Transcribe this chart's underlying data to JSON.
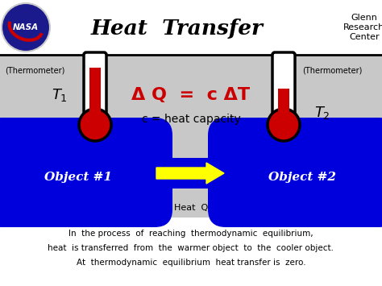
{
  "title": "Heat  Transfer",
  "glenn": "Glenn\nResearch\nCenter",
  "bg_color": "#c8c8c8",
  "header_bg": "#ffffff",
  "blue_color": "#0000dd",
  "red_color": "#cc0000",
  "black_color": "#000000",
  "white_color": "#ffffff",
  "yellow_color": "#ffff00",
  "formula": "Δ Q  =  c ΔT",
  "formula2": "c = heat capacity",
  "obj1_label": "Object #1",
  "obj2_label": "Object #2",
  "therm_label": "(Thermometer)",
  "heat_q_label": "Heat  Q",
  "footer1": "In  the process  of  reaching  thermodynamic  equilibrium,",
  "footer2": "heat  is transferred  from  the  warmer object  to  the  cooler object.",
  "footer3": "At  thermodynamic  equilibrium  heat transfer is  zero."
}
